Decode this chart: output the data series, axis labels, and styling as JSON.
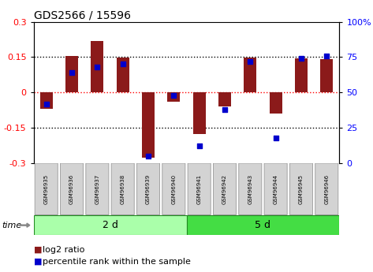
{
  "title": "GDS2566 / 15596",
  "samples": [
    "GSM96935",
    "GSM96936",
    "GSM96937",
    "GSM96938",
    "GSM96939",
    "GSM96940",
    "GSM96941",
    "GSM96942",
    "GSM96943",
    "GSM96944",
    "GSM96945",
    "GSM96946"
  ],
  "log2_ratio": [
    -0.07,
    0.155,
    0.22,
    0.148,
    -0.275,
    -0.04,
    -0.175,
    -0.06,
    0.148,
    -0.09,
    0.145,
    0.142
  ],
  "percentile_rank": [
    42,
    64,
    68,
    70,
    5,
    48,
    12,
    38,
    72,
    18,
    74,
    76
  ],
  "group1_label": "2 d",
  "group2_label": "5 d",
  "group1_count": 6,
  "group2_count": 6,
  "bar_color": "#8B1A1A",
  "dot_color": "#0000CC",
  "ylim_left": [
    -0.3,
    0.3
  ],
  "ylim_right": [
    0,
    100
  ],
  "yticks_left": [
    -0.3,
    -0.15,
    0,
    0.15,
    0.3
  ],
  "yticks_right": [
    0,
    25,
    50,
    75,
    100
  ],
  "group1_color": "#AAFFAA",
  "group2_color": "#44DD44",
  "sample_box_color": "#D3D3D3",
  "legend_red_label": "log2 ratio",
  "legend_blue_label": "percentile rank within the sample",
  "hline_colors": [
    "black",
    "red",
    "black"
  ],
  "hline_positions": [
    -0.15,
    0.0,
    0.15
  ]
}
